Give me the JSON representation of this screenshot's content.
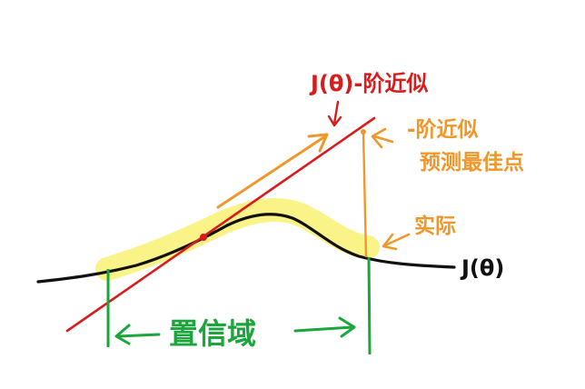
{
  "labels": {
    "tangent": "J(θ)-阶近似",
    "predicted_line1": "-阶近似",
    "predicted_line2": "预测最佳点",
    "actual": "实际",
    "curve": "J(θ)",
    "trust_region": "置信域"
  },
  "colors": {
    "curve": "#111111",
    "highlight": "#faf27a",
    "tangent": "#d81c1c",
    "prediction": "#f0962a",
    "boundary": "#1aa63a"
  }
}
